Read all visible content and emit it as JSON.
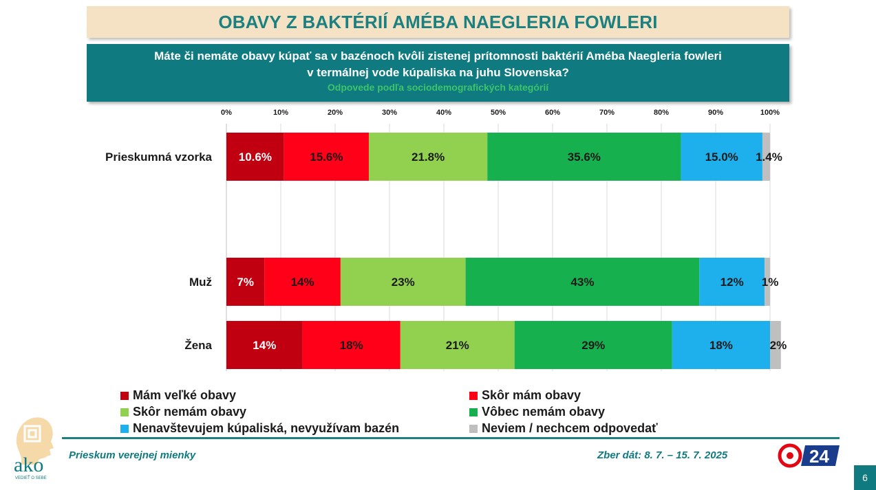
{
  "header": {
    "title": "OBAVY Z BAKTÉRIÍ AMÉBA NAEGLERIA FOWLERI",
    "question_line1": "Máte či nemáte obavy kúpať sa v bazénoch kvôli zistenej prítomnosti baktérií Améba Naegleria fowleri",
    "question_line2": "v termálnej vode kúpaliska na juhu Slovenska?",
    "subtitle": "Odpovede podľa sociodemografických kategórií"
  },
  "chart_data": {
    "type": "bar",
    "orientation": "horizontal",
    "stacked": true,
    "categories": [
      "Prieskumná vzorka",
      "Muž",
      "Žena"
    ],
    "x_ticks": [
      "0%",
      "10%",
      "20%",
      "30%",
      "40%",
      "50%",
      "60%",
      "70%",
      "80%",
      "90%",
      "100%"
    ],
    "xlim": [
      0,
      100
    ],
    "grid": true,
    "legend_position": "bottom",
    "series": [
      {
        "name": "Mám veľké obavy",
        "color": "#c00010",
        "values": [
          10.6,
          7,
          14
        ],
        "labels": [
          "10.6%",
          "7%",
          "14%"
        ],
        "label_color": "#ffffff"
      },
      {
        "name": "Skôr mám obavy",
        "color": "#ff0018",
        "values": [
          15.6,
          14,
          18
        ],
        "labels": [
          "15.6%",
          "14%",
          "18%"
        ],
        "label_color": "#1a1a1a"
      },
      {
        "name": "Skôr nemám obavy",
        "color": "#92d050",
        "values": [
          21.8,
          23,
          21
        ],
        "labels": [
          "21.8%",
          "23%",
          "21%"
        ],
        "label_color": "#1a1a1a"
      },
      {
        "name": "Vôbec nemám obavy",
        "color": "#16b04f",
        "values": [
          35.6,
          43,
          29
        ],
        "labels": [
          "35.6%",
          "43%",
          "29%"
        ],
        "label_color": "#1a1a1a"
      },
      {
        "name": "Nenavštevujem kúpaliská, nevyužívam bazén",
        "color": "#1eb0ec",
        "values": [
          15.0,
          12,
          18
        ],
        "labels": [
          "15.0%",
          "12%",
          "18%"
        ],
        "label_color": "#1a1a1a"
      },
      {
        "name": "Neviem / nechcem odpovedať",
        "color": "#bfbfbf",
        "values": [
          1.4,
          1,
          2
        ],
        "labels": [
          "1.4%",
          "1%",
          "2%"
        ],
        "label_color": "#1a1a1a"
      }
    ]
  },
  "footer": {
    "left": "Prieskum verejnej mienky",
    "right": "Zber dát: 8. 7. – 15. 7. 2025",
    "page_number": "6"
  },
  "logos": {
    "ako_text": "ako",
    "ako_tagline": "VEDIEŤ O SEBE",
    "tv_text": "24"
  }
}
